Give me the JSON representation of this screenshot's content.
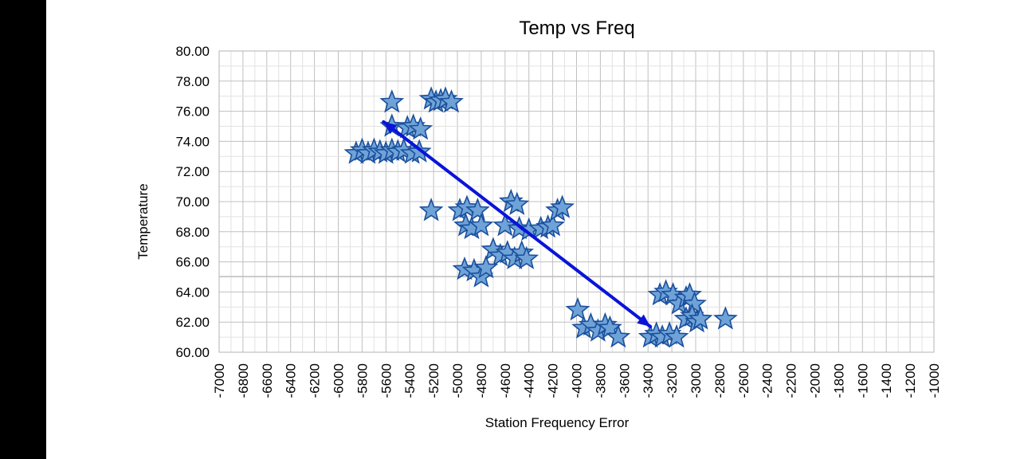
{
  "chart_data": {
    "type": "scatter",
    "title": "Temp vs Freq",
    "xlabel": "Station Frequency Error",
    "ylabel": "Temperature",
    "xlim": [
      -7000,
      -1000
    ],
    "ylim": [
      60,
      80
    ],
    "x_tick_step": 200,
    "y_tick_step": 2,
    "y_tick_decimals": 2,
    "grid": true,
    "marker": "star",
    "colors": {
      "marker_fill": "#6fa3d8",
      "marker_stroke": "#1a4f9c",
      "arrow": "#0a14d8",
      "grid_major": "#c0c0c0",
      "grid_minor": "#e2e2e2"
    },
    "series": [
      {
        "points": [
          [
            -5550,
            76.6
          ],
          [
            -5220,
            76.8
          ],
          [
            -5180,
            76.6
          ],
          [
            -5140,
            76.7
          ],
          [
            -5100,
            76.8
          ],
          [
            -5050,
            76.6
          ],
          [
            -5550,
            75.0
          ],
          [
            -5420,
            74.9
          ],
          [
            -5370,
            75.0
          ],
          [
            -5310,
            74.8
          ],
          [
            -5850,
            73.2
          ],
          [
            -5800,
            73.4
          ],
          [
            -5750,
            73.2
          ],
          [
            -5700,
            73.4
          ],
          [
            -5650,
            73.3
          ],
          [
            -5600,
            73.2
          ],
          [
            -5550,
            73.4
          ],
          [
            -5500,
            73.3
          ],
          [
            -5450,
            73.4
          ],
          [
            -5380,
            73.2
          ],
          [
            -5320,
            73.3
          ],
          [
            -5220,
            69.4
          ],
          [
            -4980,
            69.4
          ],
          [
            -4920,
            69.6
          ],
          [
            -4830,
            69.4
          ],
          [
            -4930,
            68.4
          ],
          [
            -4880,
            68.2
          ],
          [
            -4800,
            68.4
          ],
          [
            -4550,
            70.0
          ],
          [
            -4500,
            69.8
          ],
          [
            -4600,
            68.4
          ],
          [
            -4480,
            68.2
          ],
          [
            -4400,
            68.1
          ],
          [
            -4300,
            68.2
          ],
          [
            -4240,
            68.3
          ],
          [
            -4200,
            68.4
          ],
          [
            -4160,
            69.4
          ],
          [
            -4120,
            69.6
          ],
          [
            -4700,
            66.8
          ],
          [
            -4640,
            66.4
          ],
          [
            -4580,
            66.6
          ],
          [
            -4520,
            66.2
          ],
          [
            -4460,
            66.6
          ],
          [
            -4420,
            66.2
          ],
          [
            -4940,
            65.5
          ],
          [
            -4860,
            65.4
          ],
          [
            -4800,
            65.0
          ],
          [
            -4760,
            65.6
          ],
          [
            -3990,
            62.8
          ],
          [
            -3940,
            61.6
          ],
          [
            -3880,
            61.8
          ],
          [
            -3820,
            61.4
          ],
          [
            -3760,
            61.8
          ],
          [
            -3720,
            61.6
          ],
          [
            -3650,
            61.0
          ],
          [
            -3380,
            61.0
          ],
          [
            -3330,
            61.2
          ],
          [
            -3280,
            61.0
          ],
          [
            -3220,
            61.2
          ],
          [
            -3160,
            61.0
          ],
          [
            -3300,
            63.8
          ],
          [
            -3250,
            64.0
          ],
          [
            -3190,
            63.8
          ],
          [
            -3140,
            63.2
          ],
          [
            -3080,
            63.6
          ],
          [
            -3050,
            63.8
          ],
          [
            -3010,
            63.2
          ],
          [
            -3080,
            62.2
          ],
          [
            -3030,
            62.4
          ],
          [
            -2990,
            62.0
          ],
          [
            -2960,
            62.2
          ],
          [
            -2750,
            62.2
          ]
        ]
      }
    ],
    "annotations": [
      {
        "type": "arrow",
        "from": [
          -3380,
          61.7
        ],
        "to": [
          -5620,
          75.3
        ]
      },
      {
        "type": "arrow",
        "from": [
          -5620,
          75.3
        ],
        "to": [
          -3380,
          61.7
        ]
      }
    ]
  }
}
